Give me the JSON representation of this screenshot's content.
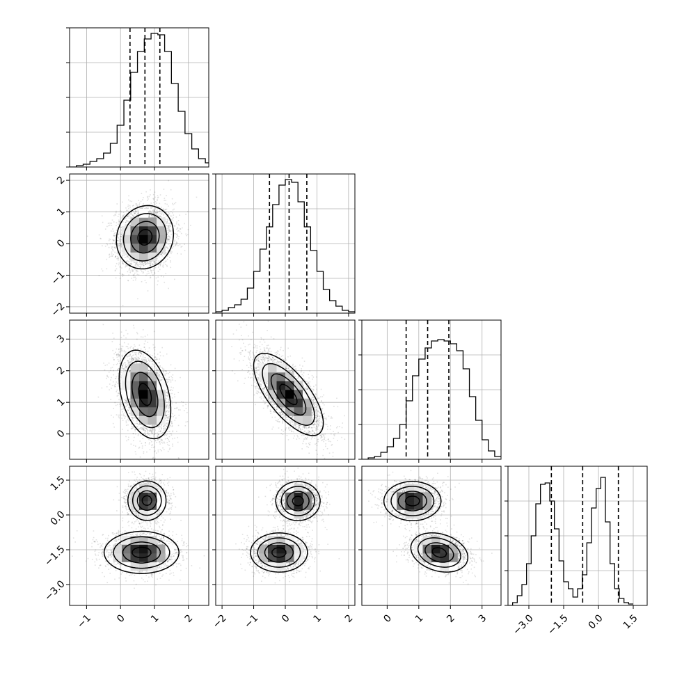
{
  "chart_data": {
    "type": "corner",
    "title": "",
    "parameters": [
      {
        "range": [
          -1.5,
          2.6
        ],
        "quantiles": [
          0.28,
          0.72,
          1.16
        ],
        "ticks": [
          -1,
          0,
          1,
          2
        ],
        "tick_labels": [
          "−1",
          "0",
          "1",
          "2"
        ]
      },
      {
        "range": [
          -2.2,
          2.2
        ],
        "quantiles": [
          -0.5,
          0.12,
          0.68
        ],
        "ticks": [
          -2,
          -1,
          0,
          1,
          2
        ],
        "tick_labels": [
          "−2",
          "−1",
          "0",
          "1",
          "2"
        ]
      },
      {
        "range": [
          -0.8,
          3.6
        ],
        "quantiles": [
          0.6,
          1.28,
          1.95
        ],
        "ticks": [
          0,
          1,
          2,
          3
        ],
        "tick_labels": [
          "0",
          "1",
          "2",
          "3"
        ]
      },
      {
        "range": [
          -3.9,
          2.1
        ],
        "quantiles": [
          -2.03,
          -0.68,
          0.86
        ],
        "ticks": [
          -3.0,
          -1.5,
          0.0,
          1.5
        ],
        "tick_labels": [
          "−3.0",
          "−1.5",
          "0.0",
          "1.5"
        ]
      }
    ],
    "histograms": [
      {
        "edges_start": -1.5,
        "bin_width": 0.2,
        "counts": [
          0,
          0.01,
          0.02,
          0.04,
          0.06,
          0.1,
          0.17,
          0.3,
          0.48,
          0.68,
          0.83,
          0.92,
          0.96,
          0.95,
          0.83,
          0.6,
          0.4,
          0.24,
          0.13,
          0.06,
          0.03,
          0.01
        ]
      },
      {
        "edges_start": -2.2,
        "bin_width": 0.2,
        "counts": [
          0.01,
          0.02,
          0.04,
          0.06,
          0.1,
          0.18,
          0.3,
          0.46,
          0.62,
          0.78,
          0.92,
          0.96,
          0.94,
          0.8,
          0.62,
          0.45,
          0.3,
          0.17,
          0.09,
          0.05,
          0.02,
          0.01
        ]
      },
      {
        "edges_start": -0.8,
        "bin_width": 0.2,
        "counts": [
          0,
          0.01,
          0.02,
          0.05,
          0.09,
          0.15,
          0.25,
          0.42,
          0.6,
          0.72,
          0.8,
          0.85,
          0.86,
          0.85,
          0.83,
          0.78,
          0.65,
          0.45,
          0.28,
          0.14,
          0.06,
          0.02
        ]
      },
      {
        "edges_start": -3.9,
        "bin_width": 0.2,
        "counts": [
          0,
          0.02,
          0.07,
          0.15,
          0.3,
          0.5,
          0.73,
          0.87,
          0.88,
          0.75,
          0.55,
          0.32,
          0.17,
          0.12,
          0.06,
          0.12,
          0.22,
          0.45,
          0.7,
          0.84,
          0.92,
          0.6,
          0.3,
          0.12,
          0.05,
          0.02,
          0.01
        ]
      }
    ],
    "hist_ylim": 1.0,
    "hist_grid_fractions": [
      0.25,
      0.5,
      0.75,
      1.0
    ],
    "pairs": [
      {
        "row": 1,
        "col": 0,
        "blobs": [
          {
            "mx": 0.72,
            "my": 0.2,
            "sx": 0.42,
            "sy": 0.5,
            "r": 0.1,
            "w": 1.0,
            "n": 3200
          }
        ]
      },
      {
        "row": 2,
        "col": 0,
        "blobs": [
          {
            "mx": 0.72,
            "my": 1.25,
            "sx": 0.38,
            "sy": 0.7,
            "r": -0.35,
            "w": 1.0,
            "n": 3200
          }
        ]
      },
      {
        "row": 2,
        "col": 1,
        "blobs": [
          {
            "mx": 0.1,
            "my": 1.25,
            "sx": 0.55,
            "sy": 0.65,
            "r": -0.7,
            "w": 1.0,
            "n": 3200
          }
        ]
      },
      {
        "row": 3,
        "col": 0,
        "blobs": [
          {
            "mx": 0.78,
            "my": 0.62,
            "sx": 0.28,
            "sy": 0.42,
            "r": 0.0,
            "w": 0.5,
            "n": 1800
          },
          {
            "mx": 0.62,
            "my": -1.62,
            "sx": 0.55,
            "sy": 0.45,
            "r": 0.0,
            "w": 0.5,
            "n": 1800
          }
        ]
      },
      {
        "row": 3,
        "col": 1,
        "blobs": [
          {
            "mx": 0.4,
            "my": 0.6,
            "sx": 0.35,
            "sy": 0.42,
            "r": 0.0,
            "w": 0.5,
            "n": 1800
          },
          {
            "mx": -0.2,
            "my": -1.62,
            "sx": 0.45,
            "sy": 0.42,
            "r": 0.0,
            "w": 0.5,
            "n": 1800
          }
        ]
      },
      {
        "row": 3,
        "col": 2,
        "blobs": [
          {
            "mx": 0.8,
            "my": 0.6,
            "sx": 0.45,
            "sy": 0.42,
            "r": 0.0,
            "w": 0.5,
            "n": 1800
          },
          {
            "mx": 1.65,
            "my": -1.62,
            "sx": 0.45,
            "sy": 0.42,
            "r": -0.25,
            "w": 0.5,
            "n": 1800
          }
        ]
      }
    ],
    "contour_levels": [
      0.5,
      1.0,
      1.5,
      2.0
    ],
    "grid": true,
    "colors": {
      "axes": "#000000",
      "grid": "#b0b0b0",
      "points": "#000000",
      "hist": "#000000"
    }
  }
}
